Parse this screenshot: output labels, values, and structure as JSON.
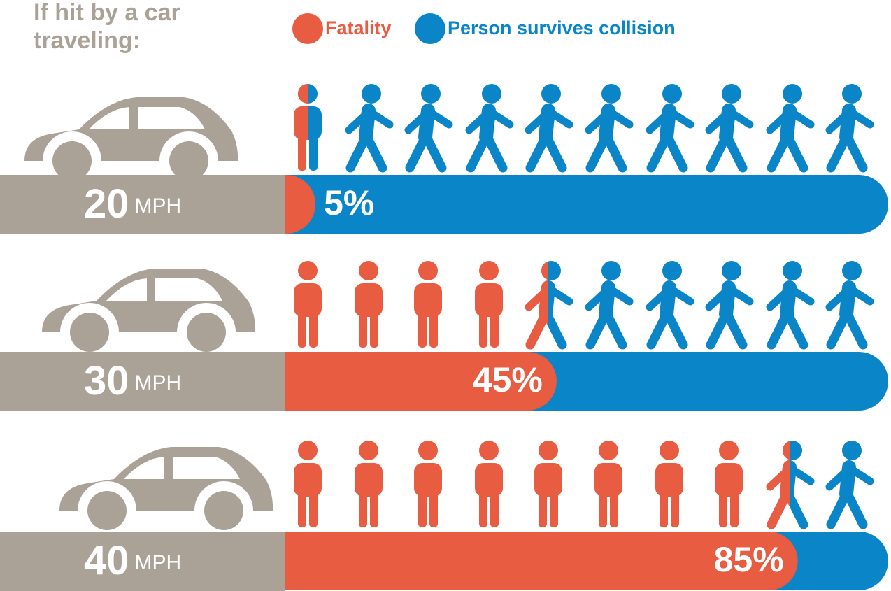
{
  "chart_data": {
    "type": "bar",
    "title": "If hit by a car traveling:",
    "categories": [
      "20",
      "30",
      "40"
    ],
    "unit": "MPH",
    "series": [
      {
        "name": "Fatality",
        "color": "#e85c41",
        "values": [
          5,
          45,
          85
        ],
        "value_labels": [
          "5%",
          "45%",
          "85%"
        ]
      },
      {
        "name": "Person survives collision",
        "color": "#0a85c7",
        "values": [
          95,
          55,
          15
        ]
      }
    ],
    "xlim": [
      0,
      100
    ],
    "band_color": "#aaa197"
  }
}
